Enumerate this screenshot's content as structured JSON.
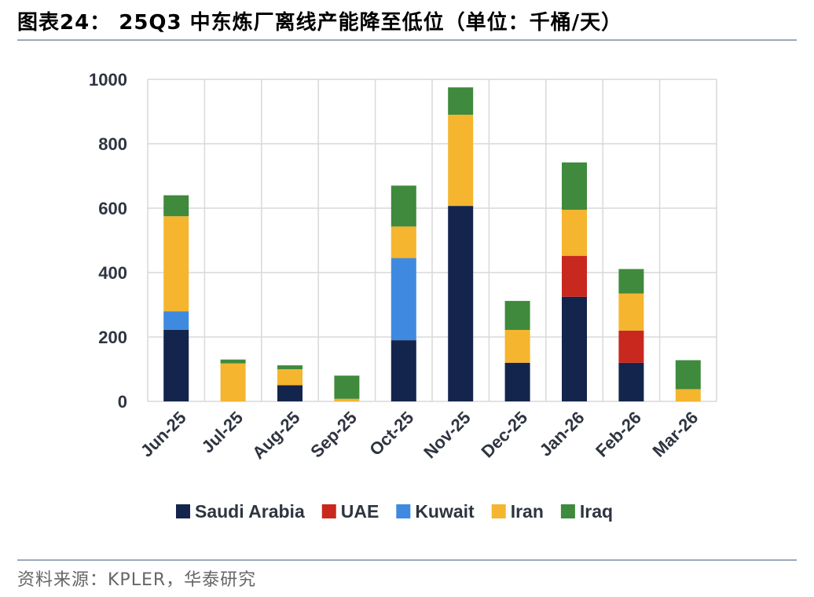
{
  "header": {
    "title": "图表24：  25Q3 中东炼厂离线产能降至低位（单位：千桶/天）"
  },
  "footer": {
    "source": "资料来源：KPLER，华泰研究"
  },
  "chart_data": {
    "type": "bar",
    "stacked": true,
    "title": "图表24：  25Q3 中东炼厂离线产能降至低位（单位：千桶/天）",
    "categories": [
      "Jun-25",
      "Jul-25",
      "Aug-25",
      "Sep-25",
      "Oct-25",
      "Nov-25",
      "Dec-25",
      "Jan-26",
      "Feb-26",
      "Mar-26"
    ],
    "series": [
      {
        "name": "Saudi Arabia",
        "color": "#14254d",
        "values": [
          222,
          0,
          50,
          0,
          190,
          607,
          120,
          325,
          120,
          0
        ]
      },
      {
        "name": "UAE",
        "color": "#c8281e",
        "values": [
          0,
          0,
          0,
          0,
          0,
          0,
          0,
          127,
          100,
          0
        ]
      },
      {
        "name": "Kuwait",
        "color": "#3f8ae0",
        "values": [
          58,
          0,
          0,
          0,
          255,
          0,
          0,
          0,
          0,
          0
        ]
      },
      {
        "name": "Iran",
        "color": "#f5b52e",
        "values": [
          295,
          118,
          50,
          8,
          98,
          283,
          102,
          143,
          115,
          38
        ]
      },
      {
        "name": "Iraq",
        "color": "#3f8a3c",
        "values": [
          65,
          12,
          12,
          72,
          127,
          85,
          90,
          147,
          76,
          90
        ]
      }
    ],
    "yticks": [
      "0",
      "200",
      "400",
      "600",
      "800",
      "1000"
    ],
    "ylim": [
      0,
      1000
    ],
    "grid": true,
    "legend_position": "bottom",
    "xlabel": "",
    "ylabel": ""
  }
}
